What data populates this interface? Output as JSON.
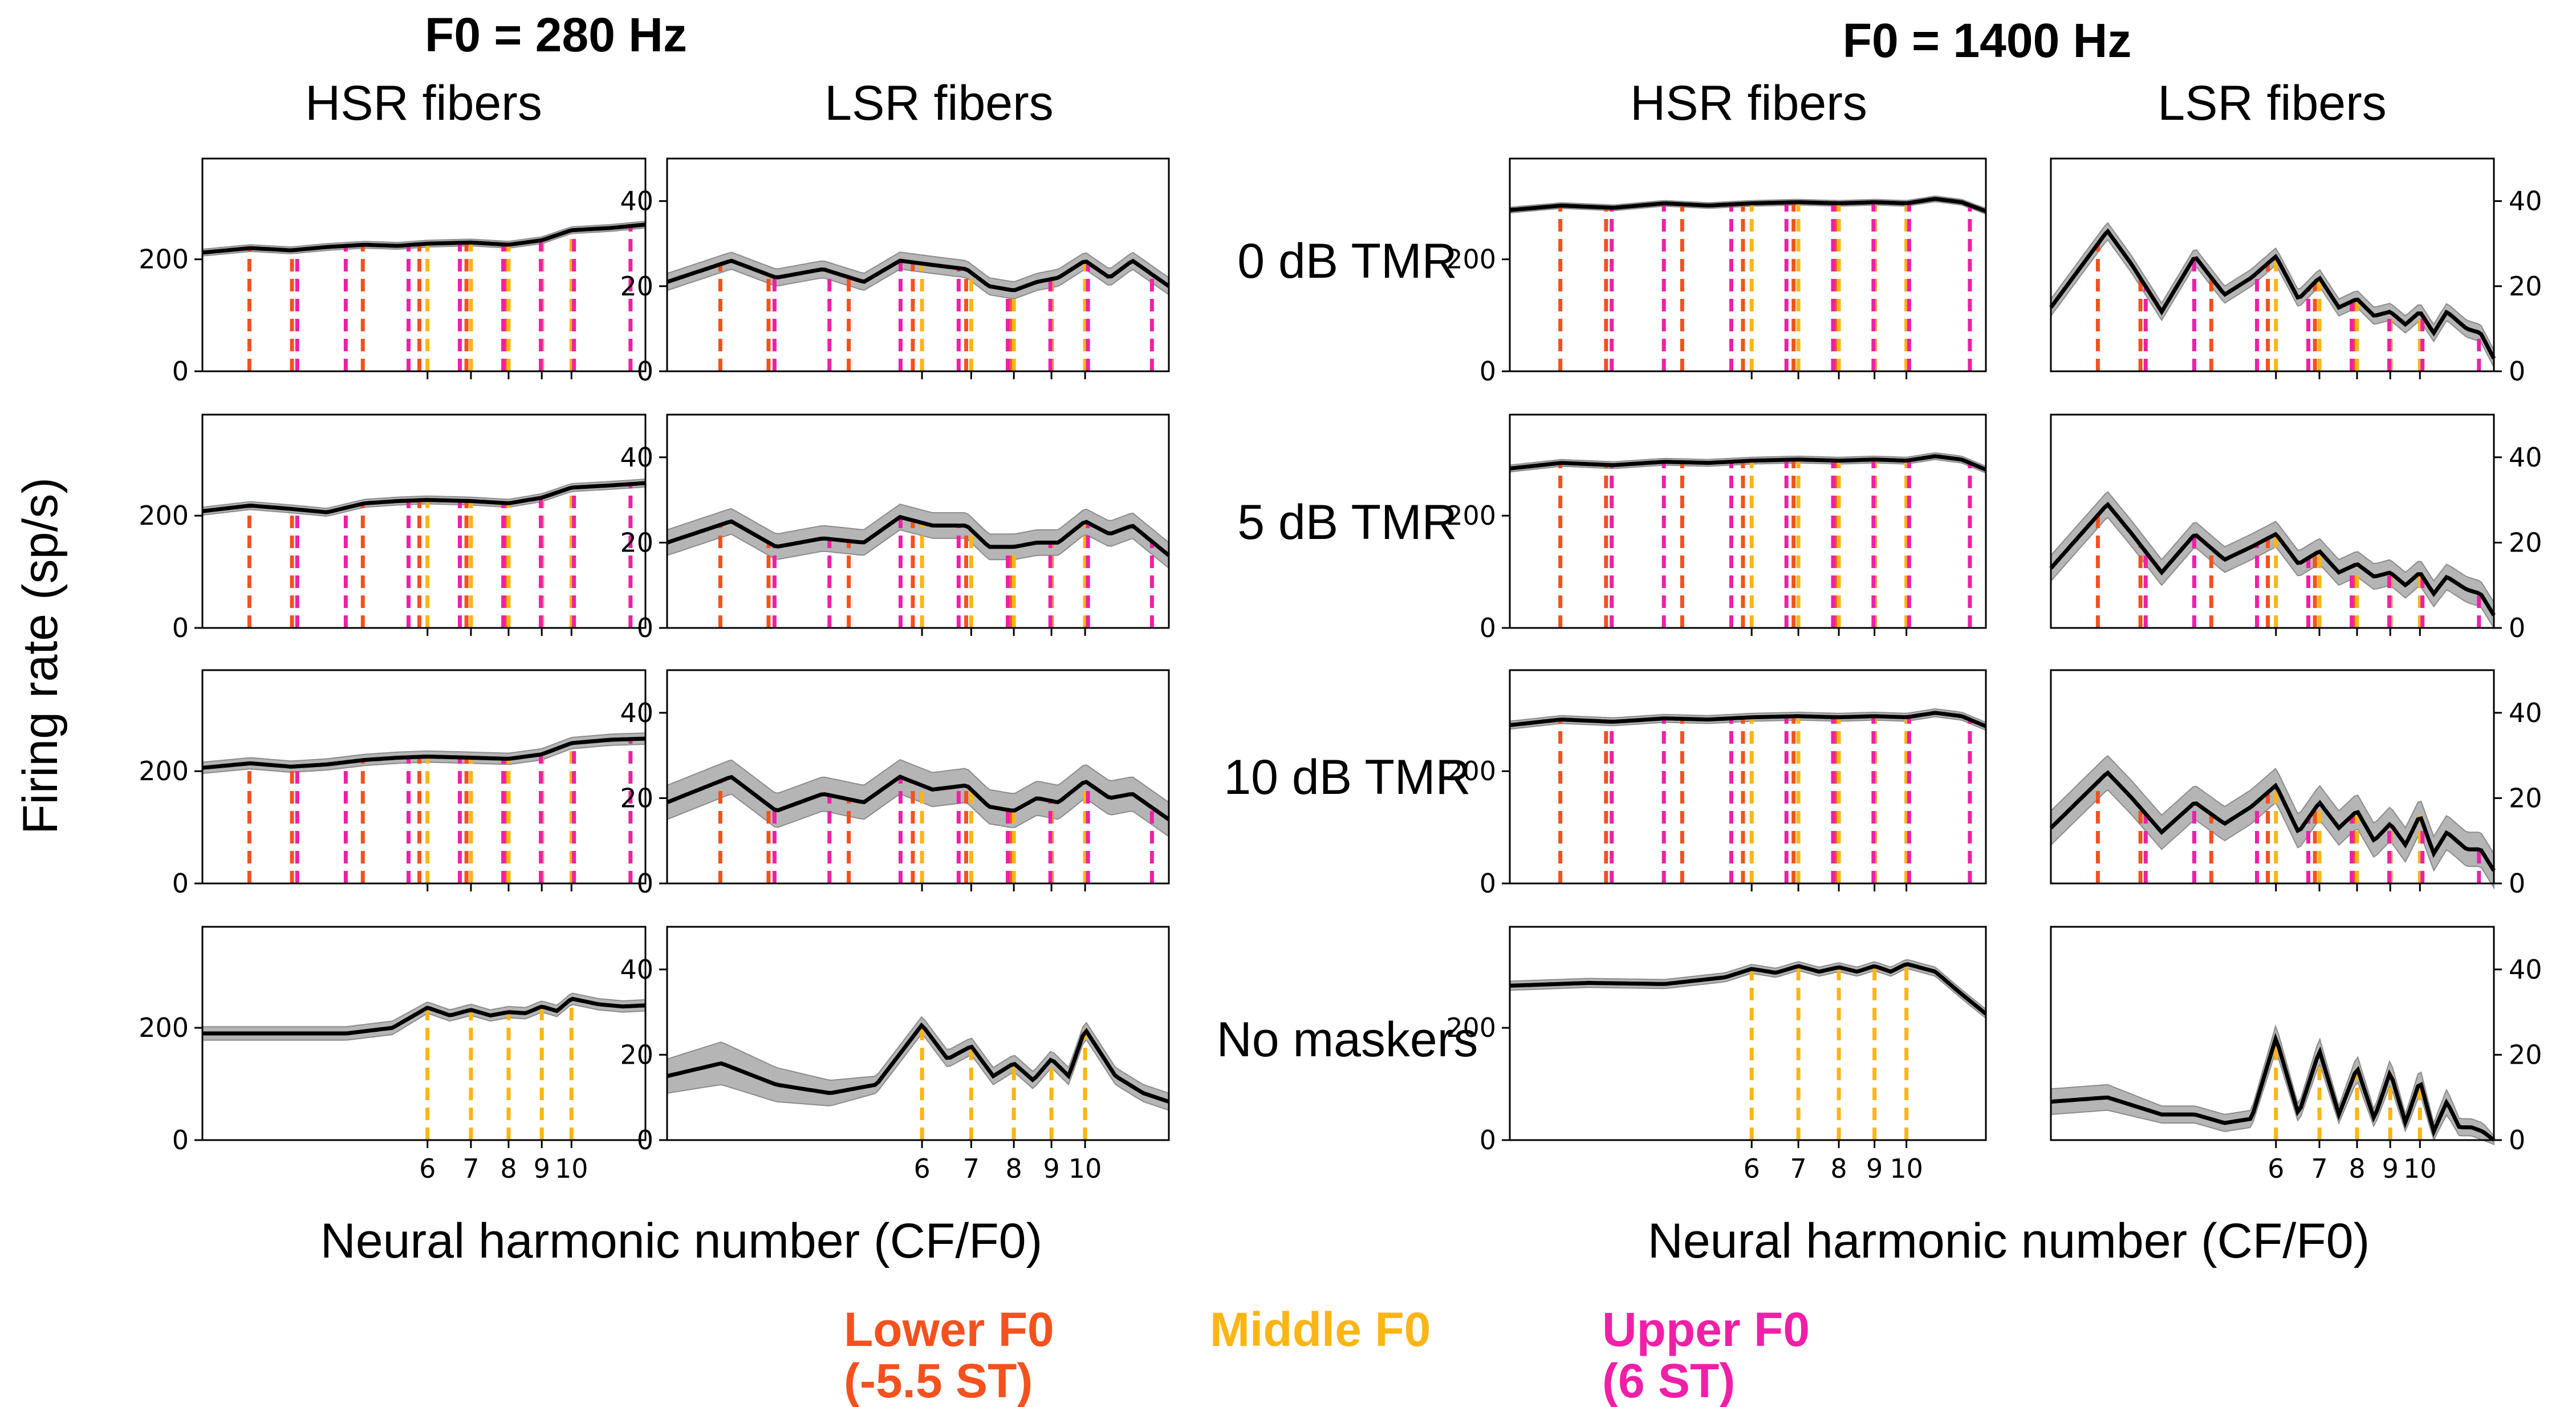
{
  "figure": {
    "ylabel": "Firing rate (sp/s)",
    "xlabel": "Neural harmonic number (CF/F0)",
    "groups": [
      {
        "title": "F0 = 280 Hz",
        "columns": [
          "HSR fibers",
          "LSR fibers"
        ]
      },
      {
        "title": "F0 = 1400 Hz",
        "columns": [
          "HSR fibers",
          "LSR fibers"
        ]
      }
    ],
    "row_labels": [
      "0 dB TMR",
      "5 dB TMR",
      "10 dB TMR",
      "No maskers"
    ],
    "legend": [
      {
        "line1": "Lower F0",
        "line2": "(-5.5 ST)",
        "color": "#f4511e"
      },
      {
        "line1": "Middle F0",
        "line2": "",
        "color": "#fbb515"
      },
      {
        "line1": "Upper F0",
        "line2": "(6 ST)",
        "color": "#f01fa8"
      }
    ]
  },
  "chart_data": {
    "type": "line",
    "x_scale": "log",
    "xlim": [
      2.7,
      13.0
    ],
    "x_ticks": [
      6,
      7,
      8,
      9,
      10
    ],
    "x_tick_labels": [
      "6",
      "7",
      "8",
      "9",
      "10"
    ],
    "marker_harmonics": {
      "lower": [
        3.19,
        3.71,
        4.77,
        5.83,
        6.89,
        7.95,
        9.01,
        10.07
      ],
      "middle": [
        6,
        7,
        8,
        9,
        10
      ],
      "upper": [
        3.78,
        4.49,
        5.61,
        6.73,
        7.85,
        8.97,
        10.09,
        12.33
      ]
    },
    "panels": [
      {
        "row": "0 dB TMR",
        "group": "F0 = 280 Hz",
        "fiber": "HSR fibers",
        "ylim": [
          0,
          380
        ],
        "yticks": [
          0,
          200
        ],
        "x": [
          2.7,
          3.2,
          3.7,
          4.2,
          4.8,
          5.4,
          6.0,
          7.0,
          8.0,
          9.0,
          10.0,
          11.5,
          13.0
        ],
        "mean": [
          212,
          220,
          216,
          222,
          226,
          224,
          228,
          230,
          226,
          234,
          252,
          256,
          262
        ],
        "sd": [
          6,
          6,
          6,
          6,
          6,
          6,
          6,
          6,
          6,
          6,
          6,
          6,
          6
        ]
      },
      {
        "row": "0 dB TMR",
        "group": "F0 = 280 Hz",
        "fiber": "LSR fibers",
        "ylim": [
          0,
          50
        ],
        "yticks": [
          0,
          20,
          40
        ],
        "x": [
          2.7,
          3.3,
          3.8,
          4.4,
          5.0,
          5.6,
          6.2,
          6.9,
          7.4,
          8.0,
          8.6,
          9.2,
          10.0,
          10.8,
          11.6,
          13.0
        ],
        "mean": [
          21,
          26,
          22,
          24,
          21,
          26,
          25,
          24,
          20,
          19,
          21,
          22,
          26,
          22,
          26,
          20
        ],
        "sd": [
          2,
          2,
          2,
          2,
          2,
          2,
          2,
          2,
          2,
          2,
          2,
          2,
          2,
          2,
          2,
          2
        ]
      },
      {
        "row": "0 dB TMR",
        "group": "F0 = 1400 Hz",
        "fiber": "HSR fibers",
        "ylim": [
          0,
          380
        ],
        "yticks": [
          0,
          200
        ],
        "x": [
          2.7,
          3.2,
          3.8,
          4.5,
          5.2,
          6.0,
          7.0,
          8.0,
          9.0,
          10.0,
          11.0,
          12.0,
          13.0
        ],
        "mean": [
          288,
          296,
          292,
          300,
          296,
          300,
          302,
          300,
          302,
          300,
          308,
          302,
          286
        ],
        "sd": [
          5,
          5,
          5,
          5,
          5,
          5,
          5,
          5,
          5,
          5,
          5,
          5,
          5
        ]
      },
      {
        "row": "0 dB TMR",
        "group": "F0 = 1400 Hz",
        "fiber": "LSR fibers",
        "ylim": [
          0,
          50
        ],
        "yticks": [
          0,
          20,
          40
        ],
        "x": [
          2.7,
          3.3,
          3.6,
          4.0,
          4.5,
          5.0,
          5.5,
          6.0,
          6.5,
          7.0,
          7.5,
          8.0,
          8.5,
          9.0,
          9.5,
          10.0,
          10.5,
          11.0,
          11.8,
          12.4,
          13.0
        ],
        "mean": [
          15,
          33,
          25,
          14,
          27,
          18,
          22,
          27,
          17,
          22,
          15,
          17,
          13,
          14,
          11,
          14,
          9,
          14,
          10,
          9,
          3
        ],
        "sd": [
          2,
          2,
          2,
          2,
          2,
          2,
          2,
          2,
          2,
          2,
          2,
          2,
          2,
          2,
          2,
          2,
          2,
          2,
          2,
          2,
          2
        ]
      },
      {
        "row": "5 dB TMR",
        "group": "F0 = 280 Hz",
        "fiber": "HSR fibers",
        "ylim": [
          0,
          380
        ],
        "yticks": [
          0,
          200
        ],
        "x": [
          2.7,
          3.2,
          3.7,
          4.2,
          4.8,
          5.4,
          6.0,
          7.0,
          8.0,
          9.0,
          10.0,
          11.5,
          13.0
        ],
        "mean": [
          208,
          218,
          212,
          206,
          222,
          226,
          228,
          226,
          222,
          232,
          250,
          254,
          258
        ],
        "sd": [
          7,
          7,
          7,
          7,
          7,
          7,
          7,
          7,
          7,
          7,
          7,
          7,
          7
        ]
      },
      {
        "row": "5 dB TMR",
        "group": "F0 = 280 Hz",
        "fiber": "LSR fibers",
        "ylim": [
          0,
          50
        ],
        "yticks": [
          0,
          20,
          40
        ],
        "x": [
          2.7,
          3.3,
          3.8,
          4.4,
          5.0,
          5.6,
          6.2,
          6.9,
          7.4,
          8.0,
          8.6,
          9.2,
          10.0,
          10.8,
          11.6,
          13.0
        ],
        "mean": [
          20,
          25,
          19,
          21,
          20,
          26,
          24,
          24,
          19,
          19,
          20,
          20,
          25,
          22,
          24,
          17
        ],
        "sd": [
          3,
          3,
          3,
          3,
          3,
          3,
          3,
          3,
          3,
          3,
          3,
          3,
          3,
          3,
          3,
          3
        ]
      },
      {
        "row": "5 dB TMR",
        "group": "F0 = 1400 Hz",
        "fiber": "HSR fibers",
        "ylim": [
          0,
          380
        ],
        "yticks": [
          0,
          200
        ],
        "x": [
          2.7,
          3.2,
          3.8,
          4.5,
          5.2,
          6.0,
          7.0,
          8.0,
          9.0,
          10.0,
          11.0,
          12.0,
          13.0
        ],
        "mean": [
          284,
          294,
          290,
          296,
          294,
          298,
          300,
          298,
          300,
          298,
          306,
          300,
          282
        ],
        "sd": [
          6,
          6,
          6,
          6,
          6,
          6,
          6,
          6,
          6,
          6,
          6,
          6,
          6
        ]
      },
      {
        "row": "5 dB TMR",
        "group": "F0 = 1400 Hz",
        "fiber": "LSR fibers",
        "ylim": [
          0,
          50
        ],
        "yticks": [
          0,
          20,
          40
        ],
        "x": [
          2.7,
          3.3,
          3.6,
          4.0,
          4.5,
          5.0,
          5.5,
          6.0,
          6.5,
          7.0,
          7.5,
          8.0,
          8.5,
          9.0,
          9.5,
          10.0,
          10.5,
          11.0,
          11.8,
          12.4,
          13.0
        ],
        "mean": [
          14,
          29,
          22,
          13,
          22,
          16,
          19,
          22,
          15,
          18,
          13,
          15,
          12,
          13,
          10,
          13,
          8,
          12,
          9,
          8,
          3
        ],
        "sd": [
          3,
          3,
          3,
          3,
          3,
          3,
          3,
          3,
          3,
          3,
          3,
          3,
          3,
          3,
          3,
          3,
          3,
          3,
          3,
          3,
          3
        ]
      },
      {
        "row": "10 dB TMR",
        "group": "F0 = 280 Hz",
        "fiber": "HSR fibers",
        "ylim": [
          0,
          380
        ],
        "yticks": [
          0,
          200
        ],
        "x": [
          2.7,
          3.2,
          3.7,
          4.2,
          4.8,
          5.4,
          6.0,
          7.0,
          8.0,
          9.0,
          10.0,
          11.5,
          13.0
        ],
        "mean": [
          206,
          214,
          208,
          212,
          220,
          224,
          226,
          224,
          222,
          230,
          250,
          256,
          258
        ],
        "sd": [
          10,
          10,
          10,
          10,
          10,
          10,
          10,
          10,
          10,
          10,
          10,
          10,
          10
        ]
      },
      {
        "row": "10 dB TMR",
        "group": "F0 = 280 Hz",
        "fiber": "LSR fibers",
        "ylim": [
          0,
          50
        ],
        "yticks": [
          0,
          20,
          40
        ],
        "x": [
          2.7,
          3.3,
          3.8,
          4.4,
          5.0,
          5.6,
          6.2,
          6.9,
          7.4,
          8.0,
          8.6,
          9.2,
          10.0,
          10.8,
          11.6,
          13.0
        ],
        "mean": [
          19,
          25,
          17,
          21,
          19,
          25,
          22,
          23,
          18,
          17,
          20,
          19,
          24,
          20,
          21,
          15
        ],
        "sd": [
          4,
          4,
          4,
          4,
          4,
          4,
          4,
          4,
          4,
          4,
          4,
          4,
          4,
          4,
          4,
          4
        ]
      },
      {
        "row": "10 dB TMR",
        "group": "F0 = 1400 Hz",
        "fiber": "HSR fibers",
        "ylim": [
          0,
          380
        ],
        "yticks": [
          0,
          200
        ],
        "x": [
          2.7,
          3.2,
          3.8,
          4.5,
          5.2,
          6.0,
          7.0,
          8.0,
          9.0,
          10.0,
          11.0,
          12.0,
          13.0
        ],
        "mean": [
          282,
          292,
          288,
          294,
          292,
          296,
          298,
          296,
          298,
          296,
          304,
          298,
          280
        ],
        "sd": [
          7,
          7,
          7,
          7,
          7,
          7,
          7,
          7,
          7,
          7,
          7,
          7,
          7
        ]
      },
      {
        "row": "10 dB TMR",
        "group": "F0 = 1400 Hz",
        "fiber": "LSR fibers",
        "ylim": [
          0,
          50
        ],
        "yticks": [
          0,
          20,
          40
        ],
        "x": [
          2.7,
          3.3,
          3.6,
          4.0,
          4.5,
          5.0,
          5.5,
          6.0,
          6.5,
          7.0,
          7.5,
          8.0,
          8.5,
          9.0,
          9.5,
          10.0,
          10.5,
          11.0,
          11.8,
          12.4,
          13.0
        ],
        "mean": [
          13,
          26,
          20,
          12,
          19,
          14,
          18,
          23,
          12,
          19,
          13,
          17,
          10,
          14,
          9,
          16,
          7,
          12,
          8,
          8,
          3
        ],
        "sd": [
          4,
          4,
          4,
          4,
          4,
          4,
          4,
          4,
          4,
          4,
          4,
          4,
          4,
          4,
          4,
          4,
          4,
          4,
          4,
          4,
          4
        ]
      },
      {
        "row": "No maskers",
        "group": "F0 = 280 Hz",
        "fiber": "HSR fibers",
        "ylim": [
          0,
          380
        ],
        "yticks": [
          0,
          200
        ],
        "x": [
          2.7,
          3.5,
          4.5,
          5.3,
          6.0,
          6.5,
          7.0,
          7.5,
          8.0,
          8.5,
          9.0,
          9.5,
          10.0,
          11.0,
          12.0,
          13.0
        ],
        "mean": [
          190,
          190,
          190,
          200,
          236,
          222,
          232,
          222,
          228,
          226,
          238,
          230,
          252,
          242,
          238,
          240
        ],
        "sd": [
          12,
          12,
          12,
          12,
          10,
          10,
          10,
          10,
          10,
          10,
          10,
          10,
          10,
          10,
          10,
          10
        ]
      },
      {
        "row": "No maskers",
        "group": "F0 = 280 Hz",
        "fiber": "LSR fibers",
        "ylim": [
          0,
          50
        ],
        "yticks": [
          0,
          20,
          40
        ],
        "x": [
          2.7,
          3.2,
          3.8,
          4.5,
          5.2,
          6.0,
          6.5,
          7.0,
          7.5,
          8.0,
          8.5,
          9.0,
          9.5,
          10.0,
          11.0,
          12.0,
          13.0
        ],
        "mean": [
          15,
          18,
          13,
          11,
          13,
          27,
          19,
          22,
          15,
          18,
          14,
          19,
          15,
          26,
          15,
          11,
          9
        ],
        "sd": [
          4,
          5,
          4,
          3,
          2,
          2,
          2,
          2,
          2,
          2,
          2,
          2,
          2,
          2,
          2,
          2,
          2
        ]
      },
      {
        "row": "No maskers",
        "group": "F0 = 1400 Hz",
        "fiber": "HSR fibers",
        "ylim": [
          0,
          380
        ],
        "yticks": [
          0,
          200
        ],
        "x": [
          2.7,
          3.5,
          4.5,
          5.5,
          6.0,
          6.5,
          7.0,
          7.5,
          8.0,
          8.5,
          9.0,
          9.5,
          10.0,
          11.0,
          12.0,
          13.0
        ],
        "mean": [
          275,
          280,
          278,
          290,
          305,
          298,
          310,
          300,
          308,
          300,
          310,
          300,
          314,
          300,
          260,
          225
        ],
        "sd": [
          8,
          8,
          8,
          8,
          8,
          8,
          8,
          8,
          8,
          8,
          8,
          8,
          8,
          8,
          8,
          8
        ]
      },
      {
        "row": "No maskers",
        "group": "F0 = 1400 Hz",
        "fiber": "LSR fibers",
        "ylim": [
          0,
          50
        ],
        "yticks": [
          0,
          20,
          40
        ],
        "x": [
          2.7,
          3.3,
          4.0,
          4.5,
          5.0,
          5.5,
          6.0,
          6.5,
          7.0,
          7.5,
          8.0,
          8.5,
          9.0,
          9.5,
          10.0,
          10.5,
          11.0,
          11.5,
          12.0,
          12.5,
          13.0
        ],
        "mean": [
          9,
          10,
          6,
          6,
          4,
          5,
          24,
          6,
          21,
          6,
          17,
          5,
          16,
          4,
          14,
          2,
          9,
          3,
          3,
          2,
          0
        ],
        "sd": [
          3,
          3,
          2,
          2,
          2,
          2,
          3,
          2,
          3,
          2,
          3,
          2,
          3,
          2,
          3,
          2,
          3,
          2,
          2,
          2,
          1
        ]
      }
    ]
  }
}
